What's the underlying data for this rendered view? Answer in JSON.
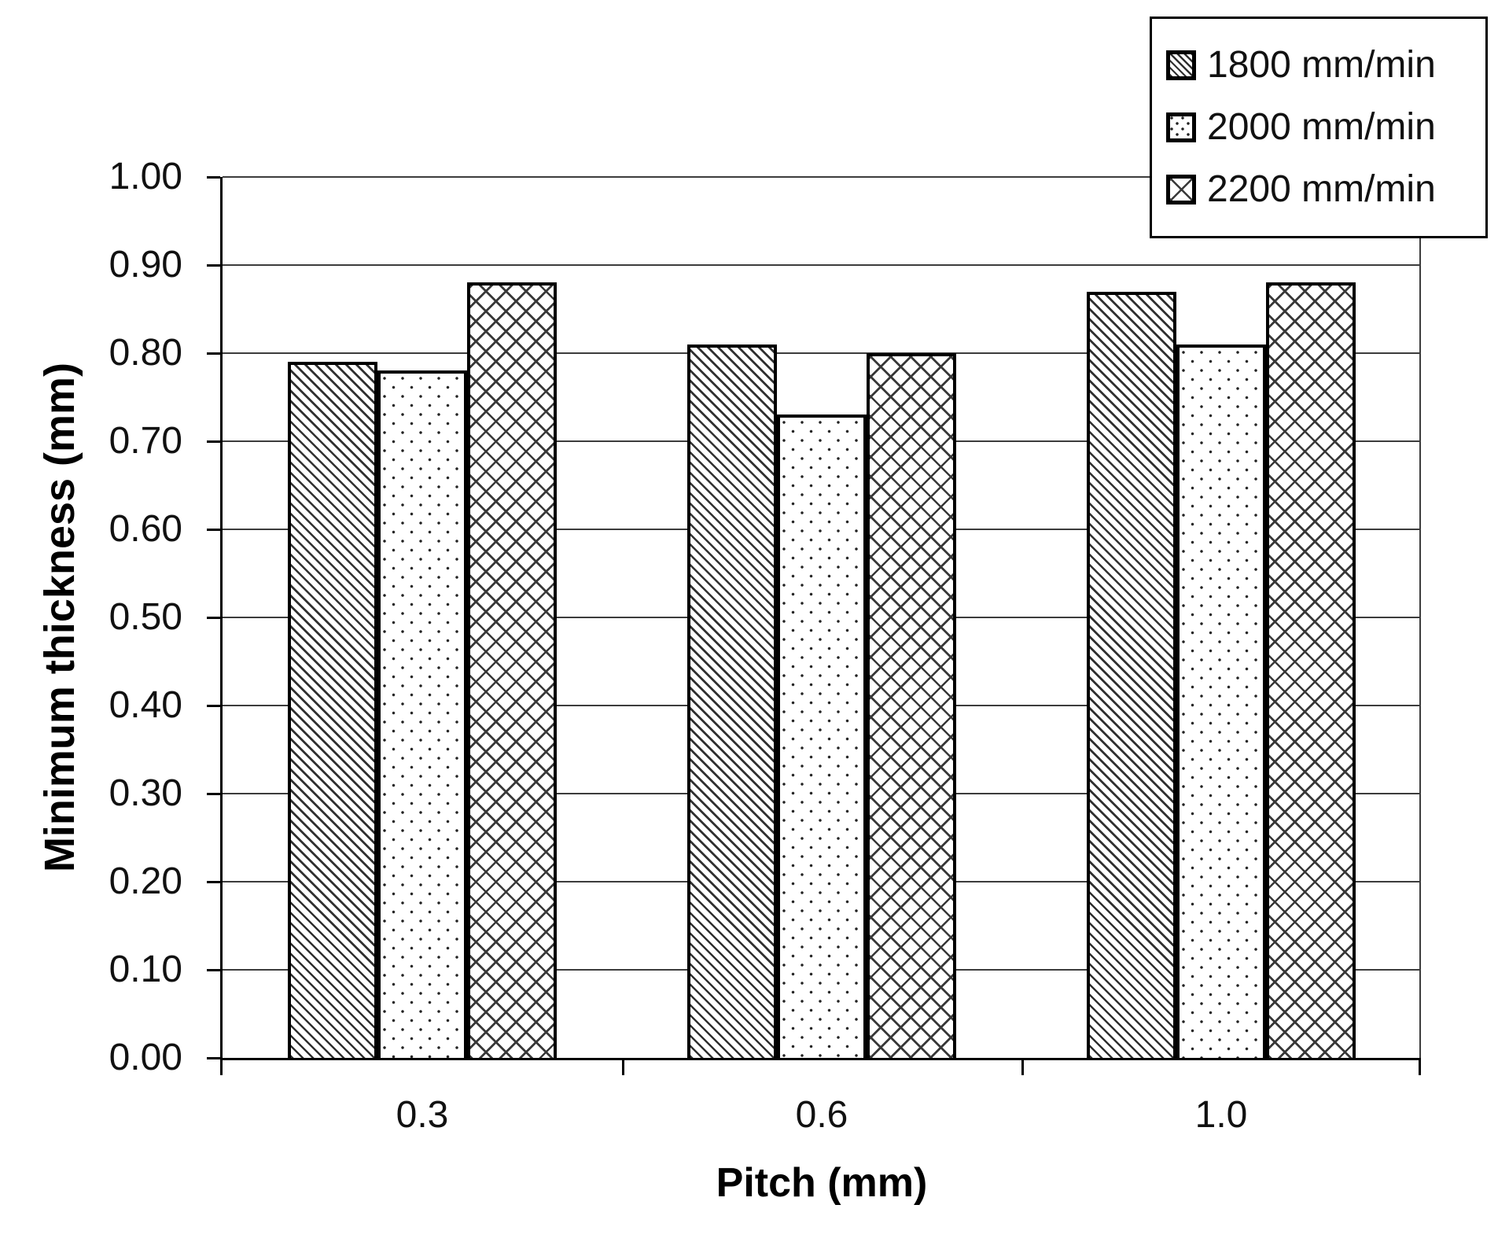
{
  "chart_data": {
    "type": "bar",
    "title": "",
    "xlabel": "Pitch (mm)",
    "ylabel": "Minimum thickness (mm)",
    "categories": [
      "0.3",
      "0.6",
      "1.0"
    ],
    "series": [
      {
        "name": "1800 mm/min",
        "pattern": "diagonal-hatch",
        "values": [
          0.79,
          0.81,
          0.87
        ]
      },
      {
        "name": "2000 mm/min",
        "pattern": "dots",
        "values": [
          0.78,
          0.73,
          0.81
        ]
      },
      {
        "name": "2200 mm/min",
        "pattern": "cross-hatch",
        "values": [
          0.88,
          0.8,
          0.88
        ]
      }
    ],
    "ylim": [
      0.0,
      1.0
    ],
    "ytick_step": 0.1,
    "ytick_labels": [
      "0.00",
      "0.10",
      "0.20",
      "0.30",
      "0.40",
      "0.50",
      "0.60",
      "0.70",
      "0.80",
      "0.90",
      "1.00"
    ],
    "grid": true,
    "legend_position": "top-right",
    "colors": {
      "foreground": "#000000",
      "gridline": "#3c3c3c",
      "background": "#ffffff"
    }
  }
}
